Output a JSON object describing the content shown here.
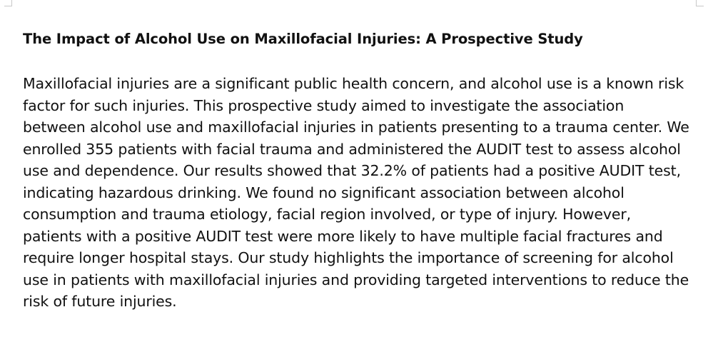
{
  "document": {
    "title": "The Impact of Alcohol Use on Maxillofacial Injuries: A Prospective Study",
    "body": "Maxillofacial injuries are a significant public health concern, and alcohol use is a known risk factor for such injuries. This prospective study aimed to investigate the association between alcohol use and maxillofacial injuries in patients presenting to a trauma center. We enrolled 355 patients with facial trauma and administered the AUDIT test to assess alcohol use and dependence. Our results showed that 32.2% of patients had a positive AUDIT test, indicating hazardous drinking. We found no significant association between alcohol consumption and trauma etiology, facial region involved, or type of injury. However, patients with a positive AUDIT test were more likely to have multiple facial fractures and require longer hospital stays. Our study highlights the importance of screening for alcohol use in patients with maxillofacial injuries and providing targeted interventions to reduce the risk of future injuries."
  }
}
